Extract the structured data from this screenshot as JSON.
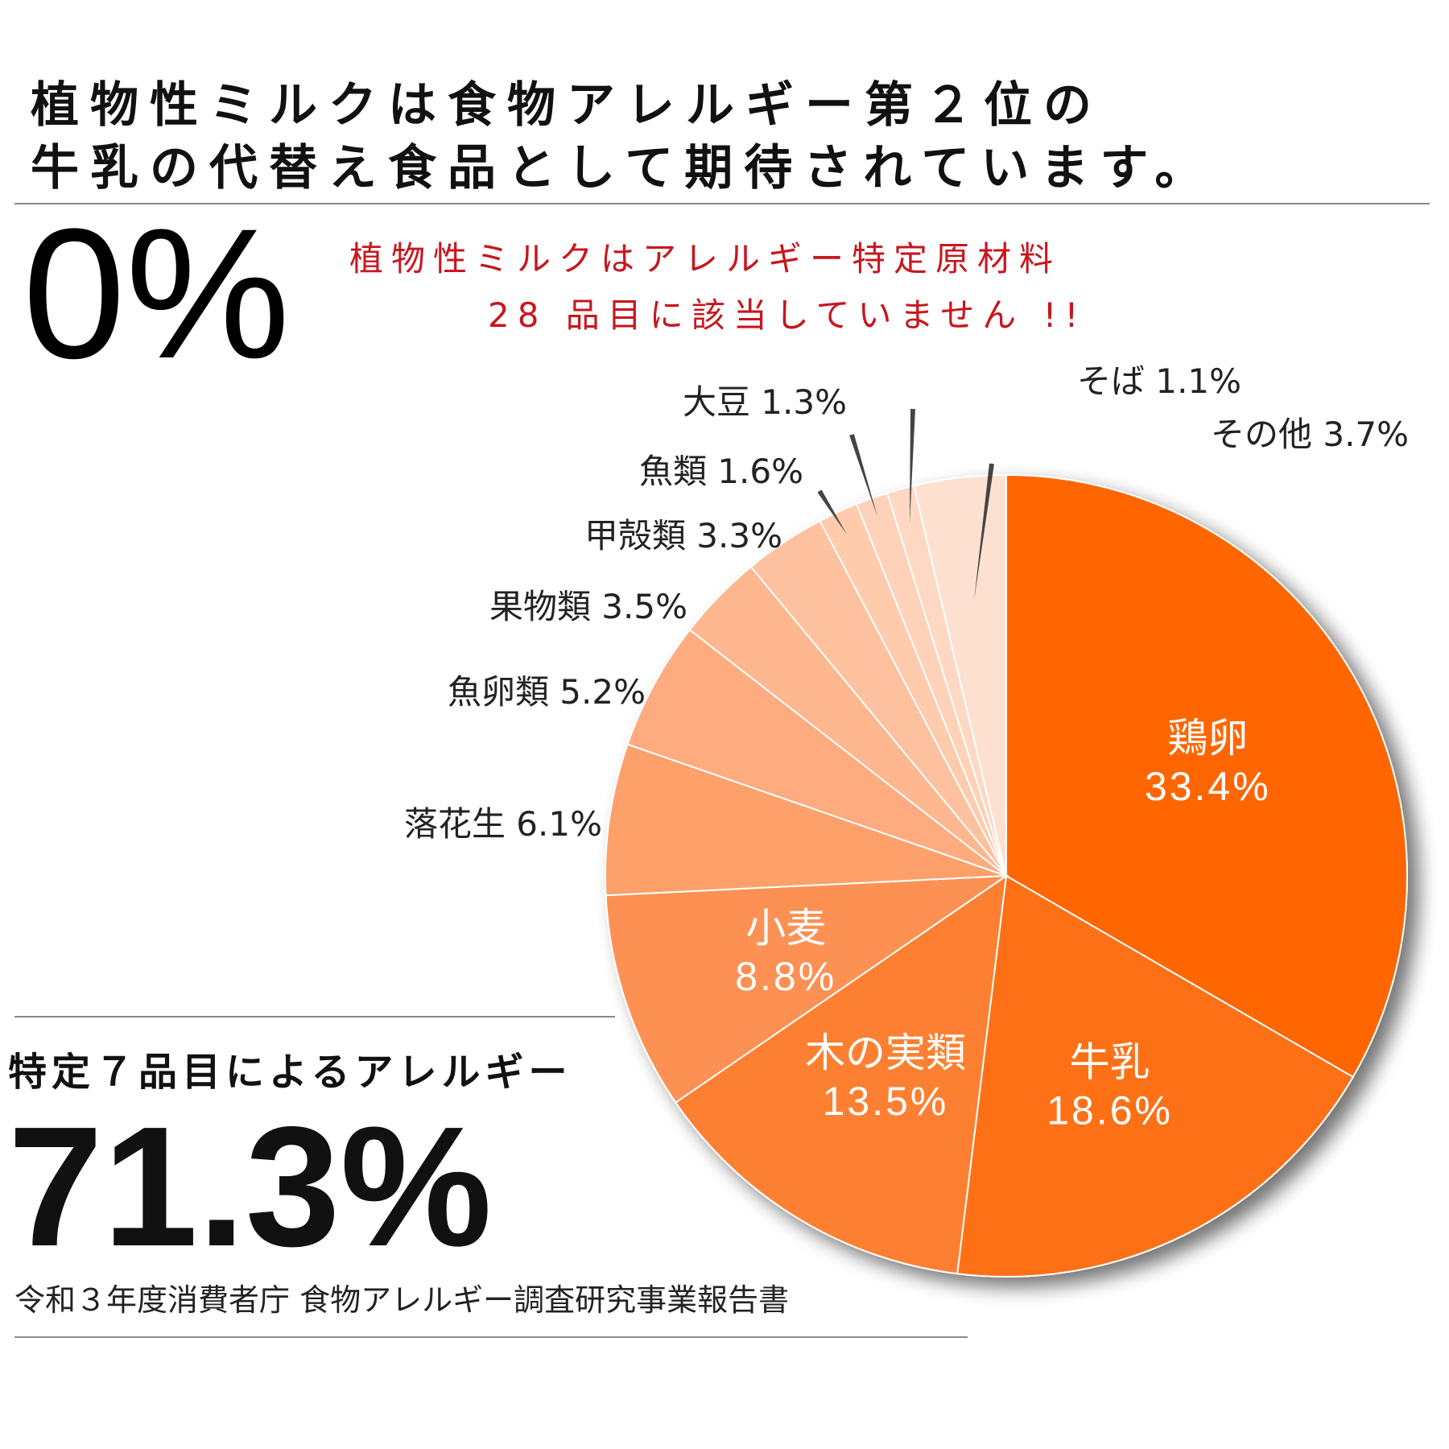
{
  "headline": {
    "line1": "植物性ミルクは食物アレルギー第２位の",
    "line2": "牛乳の代替え食品として期待されています。"
  },
  "zero_percent": "0%",
  "note": {
    "line1": "植物性ミルクはアレルギー特定原材料",
    "line2": "28 品目に該当していません !!"
  },
  "summary": {
    "heading": "特定７品目によるアレルギー",
    "value": "71.3%"
  },
  "source": "令和３年度消費者庁 食物アレルギー調査研究事業報告書",
  "chart_data": {
    "type": "pie",
    "start": "top",
    "direction": "clockwise",
    "slices": [
      {
        "label": "鶏卵",
        "value": 33.4,
        "value_text": "33.4%",
        "color": "#ff6600",
        "label_style": "inside"
      },
      {
        "label": "牛乳",
        "value": 18.6,
        "value_text": "18.6%",
        "color": "#fe7018",
        "label_style": "inside"
      },
      {
        "label": "木の実類",
        "value": 13.5,
        "value_text": "13.5%",
        "color": "#fd8033",
        "label_style": "inside"
      },
      {
        "label": "小麦",
        "value": 8.8,
        "value_text": "8.8%",
        "color": "#fd9152",
        "label_style": "inside"
      },
      {
        "label": "落花生",
        "value": 6.1,
        "value_text": "6.1%",
        "color": "#fea06a",
        "label_style": "outside"
      },
      {
        "label": "魚卵類",
        "value": 5.2,
        "value_text": "5.2%",
        "color": "#feac7f",
        "label_style": "outside"
      },
      {
        "label": "果物類",
        "value": 3.5,
        "value_text": "3.5%",
        "color": "#feb78f",
        "label_style": "outside"
      },
      {
        "label": "甲殻類",
        "value": 3.3,
        "value_text": "3.3%",
        "color": "#fec19f",
        "label_style": "outside"
      },
      {
        "label": "魚類",
        "value": 1.6,
        "value_text": "1.6%",
        "color": "#fecbad",
        "label_style": "outside"
      },
      {
        "label": "大豆",
        "value": 1.3,
        "value_text": "1.3%",
        "color": "#fed2b8",
        "label_style": "outside"
      },
      {
        "label": "そば",
        "value": 1.1,
        "value_text": "1.1%",
        "color": "#fed8c2",
        "label_style": "outside"
      },
      {
        "label": "その他",
        "value": 3.7,
        "value_text": "3.7%",
        "color": "#fee0d0",
        "label_style": "outside"
      }
    ]
  }
}
